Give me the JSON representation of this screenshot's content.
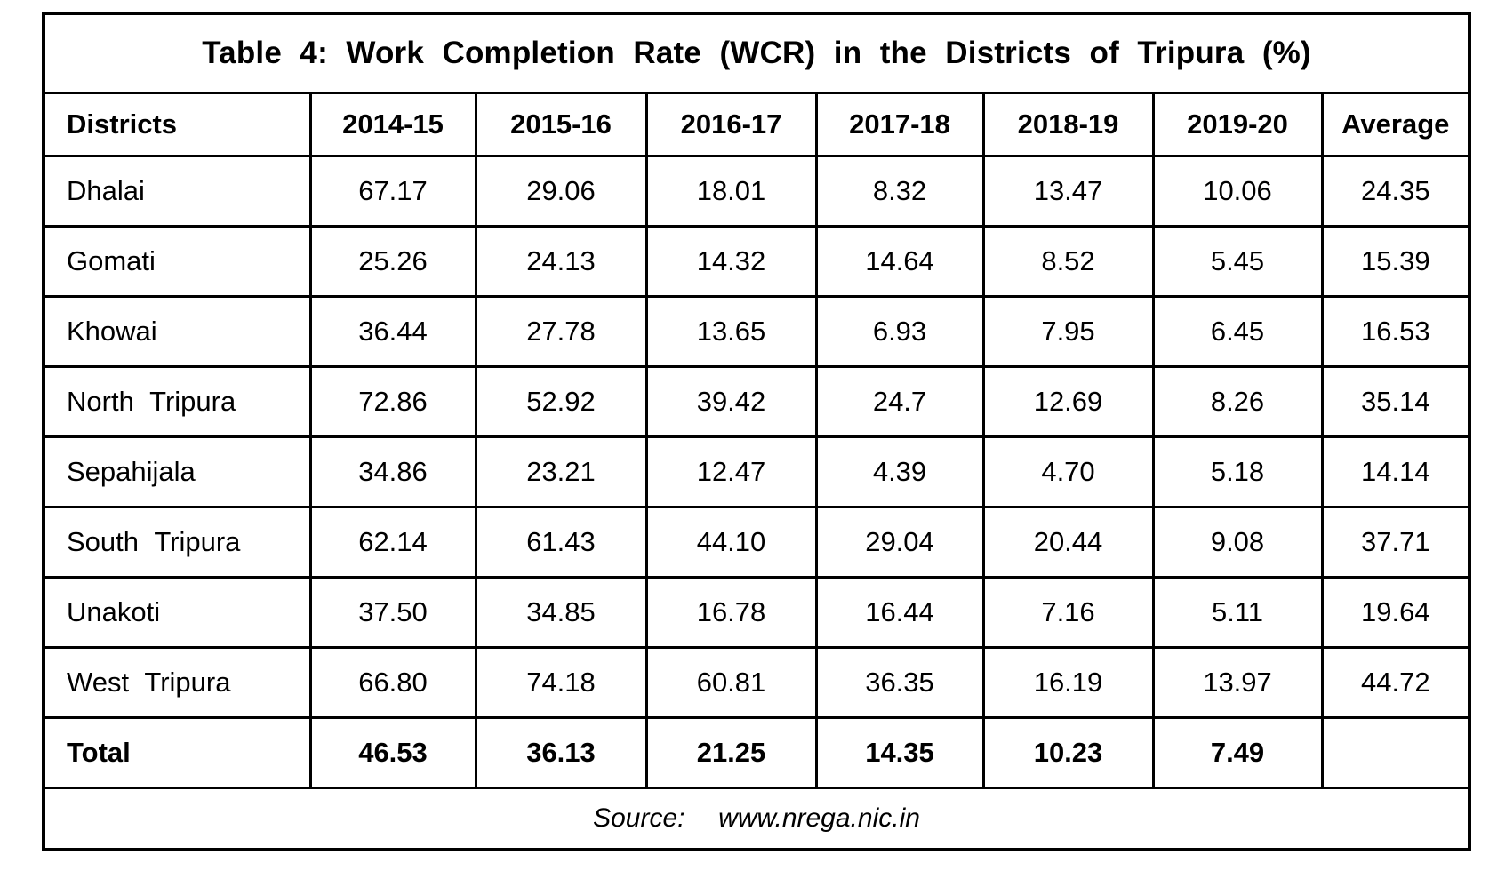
{
  "table": {
    "title": "Table 4: Work Completion Rate (WCR) in the Districts of Tripura (%)",
    "columns": [
      "Districts",
      "2014-15",
      "2015-16",
      "2016-17",
      "2017-18",
      "2018-19",
      "2019-20",
      "Average"
    ],
    "rows": [
      {
        "district": "Dhalai",
        "values": [
          "67.17",
          "29.06",
          "18.01",
          "8.32",
          "13.47",
          "10.06",
          "24.35"
        ]
      },
      {
        "district": "Gomati",
        "values": [
          "25.26",
          "24.13",
          "14.32",
          "14.64",
          "8.52",
          "5.45",
          "15.39"
        ]
      },
      {
        "district": "Khowai",
        "values": [
          "36.44",
          "27.78",
          "13.65",
          "6.93",
          "7.95",
          "6.45",
          "16.53"
        ]
      },
      {
        "district": "North Tripura",
        "values": [
          "72.86",
          "52.92",
          "39.42",
          "24.7",
          "12.69",
          "8.26",
          "35.14"
        ]
      },
      {
        "district": "Sepahijala",
        "values": [
          "34.86",
          "23.21",
          "12.47",
          "4.39",
          "4.70",
          "5.18",
          "14.14"
        ]
      },
      {
        "district": "South Tripura",
        "values": [
          "62.14",
          "61.43",
          "44.10",
          "29.04",
          "20.44",
          "9.08",
          "37.71"
        ]
      },
      {
        "district": "Unakoti",
        "values": [
          "37.50",
          "34.85",
          "16.78",
          "16.44",
          "7.16",
          "5.11",
          "19.64"
        ]
      },
      {
        "district": "West Tripura",
        "values": [
          "66.80",
          "74.18",
          "60.81",
          "36.35",
          "16.19",
          "13.97",
          "44.72"
        ]
      }
    ],
    "total": {
      "label": "Total",
      "values": [
        "46.53",
        "36.13",
        "21.25",
        "14.35",
        "10.23",
        "7.49",
        ""
      ]
    },
    "source": "Source:  www.nrega.nic.in"
  },
  "chart_data": {
    "type": "table",
    "title": "Table 4: Work Completion Rate (WCR) in the Districts of Tripura (%)",
    "categories": [
      "2014-15",
      "2015-16",
      "2016-17",
      "2017-18",
      "2018-19",
      "2019-20",
      "Average"
    ],
    "series": [
      {
        "name": "Dhalai",
        "values": [
          67.17,
          29.06,
          18.01,
          8.32,
          13.47,
          10.06,
          24.35
        ]
      },
      {
        "name": "Gomati",
        "values": [
          25.26,
          24.13,
          14.32,
          14.64,
          8.52,
          5.45,
          15.39
        ]
      },
      {
        "name": "Khowai",
        "values": [
          36.44,
          27.78,
          13.65,
          6.93,
          7.95,
          6.45,
          16.53
        ]
      },
      {
        "name": "North Tripura",
        "values": [
          72.86,
          52.92,
          39.42,
          24.7,
          12.69,
          8.26,
          35.14
        ]
      },
      {
        "name": "Sepahijala",
        "values": [
          34.86,
          23.21,
          12.47,
          4.39,
          4.7,
          5.18,
          14.14
        ]
      },
      {
        "name": "South Tripura",
        "values": [
          62.14,
          61.43,
          44.1,
          29.04,
          20.44,
          9.08,
          37.71
        ]
      },
      {
        "name": "Unakoti",
        "values": [
          37.5,
          34.85,
          16.78,
          16.44,
          7.16,
          5.11,
          19.64
        ]
      },
      {
        "name": "West Tripura",
        "values": [
          66.8,
          74.18,
          60.81,
          36.35,
          16.19,
          13.97,
          44.72
        ]
      },
      {
        "name": "Total",
        "values": [
          46.53,
          36.13,
          21.25,
          14.35,
          10.23,
          7.49,
          null
        ]
      }
    ],
    "source": "www.nrega.nic.in"
  }
}
